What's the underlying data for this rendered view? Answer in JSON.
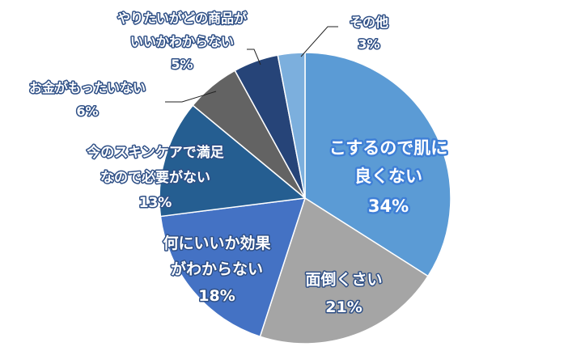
{
  "chart_data": {
    "type": "pie",
    "title": "",
    "slices": [
      {
        "lines": [
          "こするので肌に",
          "良くない"
        ],
        "value_label": "34%",
        "value": 34,
        "color": "#5b9bd5"
      },
      {
        "lines": [
          "面倒くさい"
        ],
        "value_label": "21%",
        "value": 21,
        "color": "#a5a5a5"
      },
      {
        "lines": [
          "何にいいか効果",
          "がわからない"
        ],
        "value_label": "18%",
        "value": 18,
        "color": "#4472c4"
      },
      {
        "lines": [
          "今のスキンケアで満足",
          "なので必要がない"
        ],
        "value_label": "13%",
        "value": 13,
        "color": "#255e91"
      },
      {
        "lines": [
          "お金がもったいない"
        ],
        "value_label": "6%",
        "value": 6,
        "color": "#636363"
      },
      {
        "lines": [
          "やりたいがどの商品が",
          "いいかわからない"
        ],
        "value_label": "5%",
        "value": 5,
        "color": "#264478"
      },
      {
        "lines": [
          "その他"
        ],
        "value_label": "3%",
        "value": 3,
        "color": "#7cafdd"
      }
    ]
  }
}
